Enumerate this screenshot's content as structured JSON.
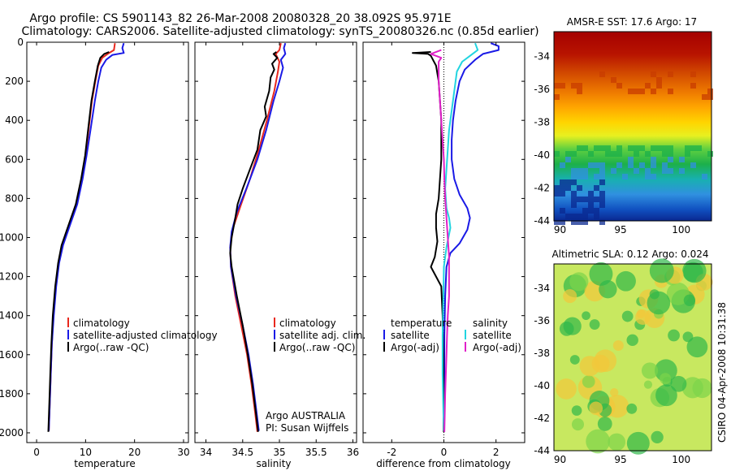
{
  "header": {
    "line1": "Argo profile: CS 5901143_82 26-Mar-2008 20080328_20 38.092S 95.971E",
    "line2": "Climatology: CARS2006. Satellite-adjusted climatology: synTS_20080326.nc (0.85d earlier)"
  },
  "chart_data": [
    {
      "type": "line",
      "id": "temperature-profile",
      "xlabel": "temperature",
      "ylabel": "",
      "xlim": [
        -2,
        31
      ],
      "ylim": [
        2050,
        0
      ],
      "xticks": [
        "0",
        "10",
        "20",
        "30"
      ],
      "yticks": [
        "0",
        "200",
        "400",
        "600",
        "800",
        "1000",
        "1200",
        "1400",
        "1600",
        "1800",
        "2000"
      ],
      "ytick_values": [
        0,
        200,
        400,
        600,
        800,
        1000,
        1200,
        1400,
        1600,
        1800,
        2000
      ],
      "xtick_values": [
        0,
        10,
        20,
        30
      ],
      "legend": [
        "climatology",
        "satellite-adjusted climatology",
        "Argo(..raw -QC)"
      ],
      "series": [
        {
          "name": "climatology",
          "color": "#e8281e",
          "points": [
            [
              16,
              5
            ],
            [
              15.8,
              40
            ],
            [
              14.5,
              60
            ],
            [
              13.4,
              80
            ],
            [
              12.6,
              120
            ],
            [
              12,
              200
            ],
            [
              11.3,
              300
            ],
            [
              10.6,
              450
            ],
            [
              10,
              580
            ],
            [
              9.3,
              700
            ],
            [
              8.2,
              830
            ],
            [
              6.8,
              930
            ],
            [
              5.3,
              1040
            ],
            [
              4.5,
              1130
            ],
            [
              3.9,
              1250
            ],
            [
              3.4,
              1400
            ],
            [
              3.1,
              1550
            ],
            [
              2.9,
              1700
            ],
            [
              2.7,
              1850
            ],
            [
              2.5,
              1990
            ]
          ]
        },
        {
          "name": "satellite-adjusted climatology",
          "color": "#1a1ae6",
          "points": [
            [
              17.8,
              5
            ],
            [
              17.5,
              30
            ],
            [
              17.8,
              55
            ],
            [
              15.5,
              65
            ],
            [
              14.2,
              90
            ],
            [
              13.2,
              130
            ],
            [
              12.6,
              200
            ],
            [
              11.9,
              300
            ],
            [
              11,
              450
            ],
            [
              10.2,
              580
            ],
            [
              9.4,
              700
            ],
            [
              8.3,
              830
            ],
            [
              6.9,
              930
            ],
            [
              5.4,
              1040
            ],
            [
              4.6,
              1130
            ],
            [
              4,
              1250
            ],
            [
              3.5,
              1400
            ],
            [
              3.1,
              1550
            ],
            [
              2.9,
              1700
            ],
            [
              2.7,
              1850
            ],
            [
              2.5,
              1990
            ]
          ]
        },
        {
          "name": "Argo(..raw -QC)",
          "color": "#000000",
          "points": [
            [
              14.8,
              50
            ],
            [
              13.8,
              60
            ],
            [
              13,
              80
            ],
            [
              12.5,
              120
            ],
            [
              11.9,
              200
            ],
            [
              11.2,
              300
            ],
            [
              10.5,
              450
            ],
            [
              9.9,
              580
            ],
            [
              9.1,
              700
            ],
            [
              8,
              830
            ],
            [
              6.6,
              930
            ],
            [
              5.1,
              1040
            ],
            [
              4.4,
              1130
            ],
            [
              3.8,
              1250
            ],
            [
              3.3,
              1400
            ],
            [
              3,
              1550
            ],
            [
              2.8,
              1700
            ],
            [
              2.6,
              1850
            ],
            [
              2.4,
              1995
            ]
          ]
        }
      ]
    },
    {
      "type": "line",
      "id": "salinity-profile",
      "xlabel": "salinity",
      "ylabel": "",
      "xlim": [
        33.85,
        36.05
      ],
      "ylim": [
        2050,
        0
      ],
      "xticks": [
        "34",
        "34.5",
        "35",
        "35.5",
        "36"
      ],
      "xtick_values": [
        34,
        34.5,
        35,
        35.5,
        36
      ],
      "legend": [
        "climatology",
        "satellite adj. clim.",
        "Argo(..raw -QC)"
      ],
      "annotation": [
        "Argo AUSTRALIA",
        "PI: Susan Wijffels"
      ],
      "series": [
        {
          "name": "climatology",
          "color": "#e8281e",
          "points": [
            [
              35.02,
              5
            ],
            [
              35,
              40
            ],
            [
              34.95,
              60
            ],
            [
              35,
              100
            ],
            [
              34.98,
              150
            ],
            [
              34.93,
              250
            ],
            [
              34.83,
              400
            ],
            [
              34.72,
              550
            ],
            [
              34.6,
              700
            ],
            [
              34.46,
              850
            ],
            [
              34.37,
              950
            ],
            [
              34.33,
              1050
            ],
            [
              34.34,
              1150
            ],
            [
              34.4,
              1300
            ],
            [
              34.48,
              1450
            ],
            [
              34.56,
              1600
            ],
            [
              34.62,
              1750
            ],
            [
              34.67,
              1900
            ],
            [
              34.7,
              1995
            ]
          ]
        },
        {
          "name": "satellite adj. clim.",
          "color": "#1a1ae6",
          "points": [
            [
              35.08,
              5
            ],
            [
              35.06,
              30
            ],
            [
              35.08,
              60
            ],
            [
              35.02,
              90
            ],
            [
              35.05,
              130
            ],
            [
              35,
              200
            ],
            [
              34.92,
              300
            ],
            [
              34.82,
              450
            ],
            [
              34.7,
              600
            ],
            [
              34.55,
              750
            ],
            [
              34.42,
              870
            ],
            [
              34.35,
              970
            ],
            [
              34.33,
              1050
            ],
            [
              34.34,
              1150
            ],
            [
              34.41,
              1300
            ],
            [
              34.5,
              1450
            ],
            [
              34.58,
              1600
            ],
            [
              34.64,
              1750
            ],
            [
              34.69,
              1900
            ],
            [
              34.72,
              1990
            ]
          ]
        },
        {
          "name": "Argo(..raw -QC)",
          "color": "#000000",
          "points": [
            [
              34.96,
              50
            ],
            [
              34.92,
              60
            ],
            [
              34.97,
              80
            ],
            [
              34.9,
              110
            ],
            [
              34.93,
              140
            ],
            [
              34.88,
              180
            ],
            [
              34.86,
              250
            ],
            [
              34.8,
              330
            ],
            [
              34.82,
              380
            ],
            [
              34.74,
              450
            ],
            [
              34.7,
              550
            ],
            [
              34.6,
              650
            ],
            [
              34.5,
              750
            ],
            [
              34.43,
              830
            ],
            [
              34.4,
              900
            ],
            [
              34.35,
              1000
            ],
            [
              34.33,
              1080
            ],
            [
              34.35,
              1150
            ],
            [
              34.42,
              1300
            ],
            [
              34.5,
              1450
            ],
            [
              34.57,
              1600
            ],
            [
              34.63,
              1750
            ],
            [
              34.68,
              1900
            ],
            [
              34.71,
              1995
            ]
          ]
        }
      ]
    },
    {
      "type": "line",
      "id": "difference-from-climatology",
      "xlabel": "difference from climatology",
      "ylabel": "",
      "xlim": [
        -3.1,
        3.1
      ],
      "ylim": [
        2050,
        0
      ],
      "xticks": [
        "-2",
        "0",
        "2"
      ],
      "xtick_values": [
        -2,
        0,
        2
      ],
      "legend_left_title": "temperature",
      "legend_right_title": "salinity",
      "legend": [
        "satellite",
        "Argo(-adj)",
        "satellite",
        "Argo(-adj)"
      ],
      "series": [
        {
          "name": "temperature satellite",
          "color": "#1a1ae6",
          "points": [
            [
              1.8,
              5
            ],
            [
              2.1,
              20
            ],
            [
              2.1,
              40
            ],
            [
              1.5,
              60
            ],
            [
              1.2,
              90
            ],
            [
              0.8,
              140
            ],
            [
              0.6,
              200
            ],
            [
              0.45,
              300
            ],
            [
              0.35,
              400
            ],
            [
              0.3,
              500
            ],
            [
              0.3,
              600
            ],
            [
              0.4,
              700
            ],
            [
              0.6,
              780
            ],
            [
              0.9,
              850
            ],
            [
              1,
              900
            ],
            [
              0.9,
              960
            ],
            [
              0.6,
              1030
            ],
            [
              0.25,
              1080
            ],
            [
              0.1,
              1150
            ],
            [
              0.05,
              1300
            ],
            [
              0.02,
              1500
            ],
            [
              0.02,
              1700
            ],
            [
              0.01,
              1900
            ],
            [
              0.01,
              1995
            ]
          ]
        },
        {
          "name": "temperature Argo(-adj)",
          "color": "#000000",
          "points": [
            [
              -0.5,
              50
            ],
            [
              -1.2,
              55
            ],
            [
              -0.6,
              60
            ],
            [
              -0.5,
              70
            ],
            [
              -0.3,
              120
            ],
            [
              -0.2,
              200
            ],
            [
              -0.15,
              300
            ],
            [
              -0.1,
              400
            ],
            [
              -0.1,
              500
            ],
            [
              -0.1,
              600
            ],
            [
              -0.15,
              700
            ],
            [
              -0.2,
              800
            ],
            [
              -0.3,
              880
            ],
            [
              -0.3,
              950
            ],
            [
              -0.25,
              1020
            ],
            [
              -0.35,
              1100
            ],
            [
              -0.5,
              1150
            ],
            [
              -0.3,
              1200
            ],
            [
              -0.1,
              1250
            ],
            [
              -0.05,
              1400
            ],
            [
              -0.02,
              1600
            ],
            [
              -0.02,
              1800
            ],
            [
              -0.01,
              1995
            ]
          ]
        },
        {
          "name": "salinity satellite",
          "color": "#22d4e0",
          "points": [
            [
              1.2,
              5
            ],
            [
              1.3,
              40
            ],
            [
              1,
              70
            ],
            [
              0.7,
              100
            ],
            [
              0.5,
              150
            ],
            [
              0.4,
              250
            ],
            [
              0.3,
              350
            ],
            [
              0.2,
              450
            ],
            [
              0.15,
              550
            ],
            [
              0.1,
              650
            ],
            [
              0.05,
              750
            ],
            [
              0.1,
              850
            ],
            [
              0.2,
              900
            ],
            [
              0.25,
              950
            ],
            [
              0.1,
              1050
            ],
            [
              0,
              1150
            ],
            [
              -0.02,
              1300
            ],
            [
              -0.05,
              1500
            ],
            [
              -0.05,
              1700
            ],
            [
              -0.02,
              1900
            ],
            [
              0,
              1990
            ]
          ]
        },
        {
          "name": "salinity Argo(-adj)",
          "color": "#e020c8",
          "points": [
            [
              -0.1,
              40
            ],
            [
              -0.5,
              60
            ],
            [
              -0.1,
              80
            ],
            [
              -0.2,
              100
            ],
            [
              -0.2,
              200
            ],
            [
              -0.15,
              300
            ],
            [
              -0.1,
              400
            ],
            [
              -0.05,
              500
            ],
            [
              0,
              600
            ],
            [
              0.02,
              700
            ],
            [
              0.05,
              800
            ],
            [
              0.1,
              900
            ],
            [
              0.15,
              1000
            ],
            [
              0.2,
              1100
            ],
            [
              0.2,
              1200
            ],
            [
              0.2,
              1300
            ],
            [
              0.15,
              1400
            ],
            [
              0.12,
              1500
            ],
            [
              0.1,
              1600
            ],
            [
              0.05,
              1800
            ],
            [
              0.02,
              1995
            ]
          ]
        }
      ]
    },
    {
      "type": "heatmap",
      "id": "amsre-sst-map",
      "title": "AMSR-E SST: 17.6 Argo: 17",
      "xlim": [
        89.5,
        102.5
      ],
      "ylim": [
        -44,
        -32.5
      ],
      "xticks": [
        "90",
        "95",
        "100"
      ],
      "xtick_values": [
        90,
        95,
        100
      ],
      "yticks": [
        "-34",
        "-36",
        "-38",
        "-40",
        "-42",
        "-44"
      ],
      "ytick_values": [
        -34,
        -36,
        -38,
        -40,
        -42,
        -44
      ],
      "marker": {
        "lon": 95.971,
        "lat": -38.092
      }
    },
    {
      "type": "heatmap",
      "id": "altimetric-sla-map",
      "title": "Altimetric SLA: 0.12 Argo: 0.024",
      "xlim": [
        89.5,
        102.5
      ],
      "ylim": [
        -44,
        -32.5
      ],
      "xticks": [
        "90",
        "95",
        "100"
      ],
      "xtick_values": [
        90,
        95,
        100
      ],
      "yticks": [
        "-34",
        "-36",
        "-38",
        "-40",
        "-42",
        "-44"
      ],
      "ytick_values": [
        -34,
        -36,
        -38,
        -40,
        -42,
        -44
      ],
      "marker": {
        "lon": 95.971,
        "lat": -38.092
      }
    }
  ],
  "footer": {
    "stamp": "CSIRO 04-Apr-2008 10:31:38"
  }
}
